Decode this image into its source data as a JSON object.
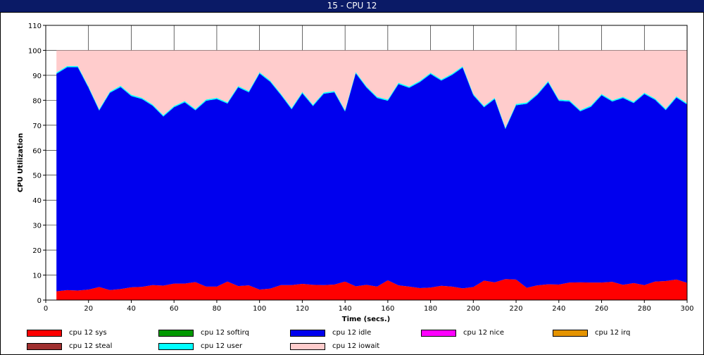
{
  "window": {
    "title": "15 - CPU 12"
  },
  "chart_data": {
    "type": "area",
    "stacked": true,
    "title": "",
    "xlabel": "Time (secs.)",
    "ylabel": "CPU Utilization",
    "xlim": [
      0,
      300
    ],
    "ylim": [
      0,
      110
    ],
    "xticks": [
      0,
      20,
      40,
      60,
      80,
      100,
      120,
      140,
      160,
      180,
      200,
      220,
      240,
      260,
      280,
      300
    ],
    "yticks": [
      0,
      10,
      20,
      30,
      40,
      50,
      60,
      70,
      80,
      90,
      100,
      110
    ],
    "grid": true,
    "legend_position": "bottom",
    "x": [
      5,
      10,
      15,
      20,
      25,
      30,
      35,
      40,
      45,
      50,
      55,
      60,
      65,
      70,
      75,
      80,
      85,
      90,
      95,
      100,
      105,
      110,
      115,
      120,
      125,
      130,
      135,
      140,
      145,
      150,
      155,
      160,
      165,
      170,
      175,
      180,
      185,
      190,
      195,
      200,
      205,
      210,
      215,
      220,
      225,
      230,
      235,
      240,
      245,
      250,
      255,
      260,
      265,
      270,
      275,
      280,
      285,
      290,
      295,
      300
    ],
    "series": [
      {
        "name": "cpu 12 sys",
        "color": "#ff0000",
        "values": [
          3.5,
          4,
          3.8,
          4.2,
          5.2,
          4,
          4.4,
          5.1,
          5.3,
          6,
          5.8,
          6.6,
          6.6,
          7.2,
          5.4,
          5.4,
          7.4,
          5.6,
          5.9,
          4.2,
          4.6,
          6,
          6,
          6.5,
          6.1,
          6,
          6.2,
          7.4,
          5.5,
          6.1,
          5.4,
          7.9,
          5.9,
          5.4,
          4.8,
          5,
          5.7,
          5.4,
          4.7,
          5.2,
          7.8,
          7.1,
          8.4,
          8.2,
          4.9,
          5.9,
          6.3,
          6.2,
          7,
          7.1,
          7,
          7,
          7.3,
          6.1,
          6.8,
          6,
          7.4,
          7.6,
          8.2,
          6.9
        ]
      },
      {
        "name": "cpu 12 softirq",
        "color": "#009900",
        "values": [
          0,
          0,
          0,
          0,
          0,
          0,
          0,
          0,
          0,
          0,
          0,
          0,
          0,
          0,
          0,
          0,
          0,
          0,
          0,
          0,
          0,
          0,
          0,
          0,
          0,
          0,
          0,
          0,
          0,
          0,
          0,
          0,
          0,
          0,
          0,
          0,
          0,
          0,
          0,
          0,
          0,
          0,
          0,
          0,
          0,
          0,
          0,
          0,
          0,
          0,
          0,
          0,
          0,
          0,
          0,
          0,
          0,
          0,
          0,
          0
        ]
      },
      {
        "name": "cpu 12 idle",
        "color": "#0000ee",
        "values": [
          87.1,
          89.2,
          89.4,
          80.8,
          70.7,
          79,
          80.9,
          76.6,
          75.2,
          71.8,
          67.7,
          70.6,
          72.6,
          68.8,
          74.4,
          75.1,
          71.3,
          79.6,
          77.3,
          86.5,
          82.8,
          76.1,
          70.4,
          76.3,
          71.6,
          76.6,
          77,
          68.1,
          85.3,
          79,
          75.5,
          71.9,
          80.6,
          79.6,
          82.5,
          85.5,
          82.2,
          84.7,
          88.4,
          76.8,
          69.4,
          73.4,
          60.1,
          69.8,
          73.7,
          76.3,
          80.9,
          73.6,
          72.5,
          68.5,
          70.4,
          75,
          72.2,
          74.8,
          72.1,
          76.5,
          72.8,
          68.5,
          72.9,
          71.4
        ]
      },
      {
        "name": "cpu 12 nice",
        "color": "#ff00ff",
        "values": [
          0,
          0,
          0,
          0,
          0,
          0,
          0,
          0,
          0,
          0,
          0,
          0,
          0,
          0,
          0,
          0,
          0,
          0,
          0,
          0,
          0,
          0,
          0,
          0,
          0,
          0,
          0,
          0,
          0,
          0,
          0,
          0,
          0,
          0,
          0,
          0,
          0,
          0,
          0,
          0,
          0,
          0,
          0,
          0,
          0,
          0,
          0,
          0,
          0,
          0,
          0,
          0,
          0,
          0,
          0,
          0,
          0,
          0,
          0,
          0
        ]
      },
      {
        "name": "cpu 12 irq",
        "color": "#e59400",
        "values": [
          0,
          0,
          0,
          0,
          0,
          0,
          0,
          0,
          0,
          0,
          0,
          0,
          0,
          0,
          0,
          0,
          0,
          0,
          0,
          0,
          0,
          0,
          0,
          0,
          0,
          0,
          0,
          0,
          0,
          0,
          0,
          0,
          0,
          0,
          0,
          0,
          0,
          0,
          0,
          0,
          0,
          0,
          0,
          0,
          0,
          0,
          0,
          0,
          0,
          0,
          0,
          0,
          0,
          0,
          0,
          0,
          0,
          0,
          0,
          0
        ]
      },
      {
        "name": "cpu 12 steal",
        "color": "#a03030",
        "values": [
          0,
          0,
          0,
          0,
          0,
          0,
          0,
          0,
          0,
          0,
          0,
          0,
          0,
          0,
          0,
          0,
          0,
          0,
          0,
          0,
          0,
          0,
          0,
          0,
          0,
          0,
          0,
          0,
          0,
          0,
          0,
          0,
          0,
          0,
          0,
          0,
          0,
          0,
          0,
          0,
          0,
          0,
          0,
          0,
          0,
          0,
          0,
          0,
          0,
          0,
          0,
          0,
          0,
          0,
          0,
          0,
          0,
          0,
          0,
          0
        ]
      },
      {
        "name": "cpu 12 user",
        "color": "#00ffff",
        "values": [
          0.5,
          0.5,
          0.5,
          0.5,
          0.5,
          0.5,
          0.5,
          0.5,
          0.5,
          0.5,
          0.5,
          0.5,
          0.5,
          0.5,
          0.5,
          0.5,
          0.5,
          0.5,
          0.5,
          0.5,
          0.5,
          0.5,
          0.5,
          0.5,
          0.5,
          0.5,
          0.5,
          0.5,
          0.5,
          0.5,
          0.5,
          0.5,
          0.5,
          0.5,
          0.5,
          0.5,
          0.5,
          0.5,
          0.5,
          0.5,
          0.5,
          0.5,
          0.5,
          0.5,
          0.5,
          0.5,
          0.5,
          0.5,
          0.5,
          0.5,
          0.5,
          0.5,
          0.5,
          0.5,
          0.5,
          0.5,
          0.5,
          0.5,
          0.5,
          0.5
        ]
      },
      {
        "name": "cpu 12 iowait",
        "color": "#ffcccc",
        "values": [
          8.9,
          6.3,
          6.3,
          14.5,
          23.6,
          16.5,
          14.2,
          17.8,
          19,
          21.7,
          26,
          22.3,
          20.3,
          23.5,
          19.7,
          19,
          20.8,
          14.3,
          16.3,
          8.8,
          12.1,
          17.4,
          23.1,
          16.7,
          21.8,
          16.9,
          16.3,
          24,
          8.7,
          14.4,
          18.6,
          19.7,
          13,
          14.5,
          12.2,
          9,
          11.6,
          9.4,
          6.4,
          17.5,
          22.3,
          19,
          31,
          21.5,
          20.9,
          17.3,
          12.3,
          19.7,
          20,
          23.9,
          22.1,
          17.5,
          20,
          18.6,
          20.6,
          17,
          19.3,
          23.4,
          18.4,
          21.2
        ]
      }
    ]
  }
}
